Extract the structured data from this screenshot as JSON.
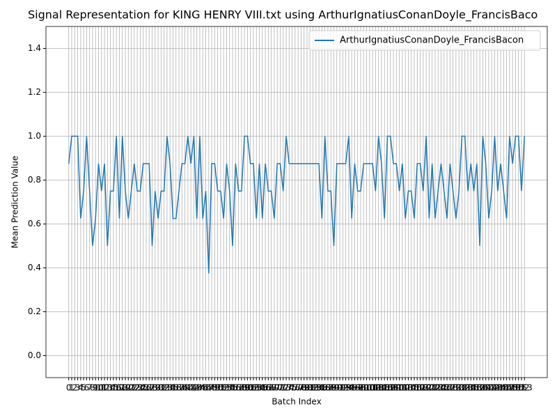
{
  "chart_data": {
    "type": "line",
    "title": "Signal Representation for KING HENRY VIII.txt using ArthurIgnatiusConanDoyle_FrancisBaco",
    "x_label": "Batch Index",
    "y_label": "Mean Prediction Value",
    "x": [
      0,
      1,
      2,
      3,
      4,
      5,
      6,
      7,
      8,
      9,
      10,
      11,
      12,
      13,
      14,
      15,
      16,
      17,
      18,
      19,
      20,
      21,
      22,
      23,
      24,
      25,
      26,
      27,
      28,
      29,
      30,
      31,
      32,
      33,
      34,
      35,
      36,
      37,
      38,
      39,
      40,
      41,
      42,
      43,
      44,
      45,
      46,
      47,
      48,
      49,
      50,
      51,
      52,
      53,
      54,
      55,
      56,
      57,
      58,
      59,
      60,
      61,
      62,
      63,
      64,
      65,
      66,
      67,
      68,
      69,
      70,
      71,
      72,
      73,
      74,
      75,
      76,
      77,
      78,
      79,
      80,
      81,
      82,
      83,
      84,
      85,
      86,
      87,
      88,
      89,
      90,
      91,
      92,
      93,
      94,
      95,
      96,
      97,
      98,
      99,
      100,
      101,
      102,
      103,
      104,
      105,
      106,
      107,
      108,
      109,
      110,
      111,
      112,
      113,
      114,
      115,
      116,
      117,
      118,
      119,
      120,
      121,
      122,
      123,
      124,
      125,
      126,
      127,
      128,
      129,
      130,
      131,
      132,
      133,
      134,
      135,
      136,
      137,
      138,
      139,
      140,
      141,
      142,
      143,
      144,
      145,
      146,
      147,
      148,
      149,
      150,
      151,
      152,
      153
    ],
    "series": [
      {
        "name": "ArthurIgnatiusConanDoyle_FrancisBacon",
        "color": "#1f77b4",
        "values": [
          0.875,
          1,
          1,
          1,
          0.625,
          0.75,
          1,
          0.75,
          0.5,
          0.625,
          0.875,
          0.75,
          0.875,
          0.5,
          0.75,
          0.75,
          1,
          0.625,
          1,
          0.75,
          0.625,
          0.75,
          0.875,
          0.75,
          0.75,
          0.875,
          0.875,
          0.875,
          0.5,
          0.75,
          0.625,
          0.75,
          0.75,
          1,
          0.875,
          0.625,
          0.625,
          0.75,
          0.875,
          0.875,
          1,
          0.875,
          1,
          0.625,
          1,
          0.625,
          0.75,
          0.375,
          0.875,
          0.875,
          0.75,
          0.75,
          0.625,
          0.875,
          0.75,
          0.5,
          0.875,
          0.75,
          0.75,
          1,
          1,
          0.875,
          0.875,
          0.625,
          0.875,
          0.625,
          0.875,
          0.75,
          0.75,
          0.625,
          0.875,
          0.875,
          0.75,
          1,
          0.875,
          0.875,
          0.875,
          0.875,
          0.875,
          0.875,
          0.875,
          0.875,
          0.875,
          0.875,
          0.875,
          0.625,
          1,
          0.75,
          0.75,
          0.5,
          0.875,
          0.875,
          0.875,
          0.875,
          1,
          0.625,
          0.875,
          0.75,
          0.75,
          0.875,
          0.875,
          0.875,
          0.875,
          0.75,
          1,
          0.875,
          0.625,
          1,
          1,
          0.875,
          0.875,
          0.75,
          0.875,
          0.625,
          0.75,
          0.75,
          0.625,
          0.875,
          0.875,
          0.75,
          1,
          0.625,
          0.875,
          0.625,
          0.75,
          0.875,
          0.75,
          0.625,
          0.875,
          0.75,
          0.625,
          0.75,
          1,
          1,
          0.75,
          0.875,
          0.75,
          0.875,
          0.5,
          1,
          0.875,
          0.625,
          0.75,
          1,
          0.75,
          0.875,
          0.75,
          0.625,
          1,
          0.875,
          1,
          1,
          0.75,
          1
        ]
      }
    ],
    "xlim": [
      -7.65,
      160.65
    ],
    "xticks": [
      0,
      1,
      2,
      3,
      4,
      5,
      6,
      7,
      8,
      9,
      10,
      11,
      12,
      13,
      14,
      15,
      16,
      17,
      18,
      19,
      20,
      21,
      22,
      23,
      24,
      25,
      26,
      27,
      28,
      29,
      30,
      31,
      32,
      33,
      34,
      35,
      36,
      37,
      38,
      39,
      40,
      41,
      42,
      43,
      44,
      45,
      46,
      47,
      48,
      49,
      50,
      51,
      52,
      53,
      54,
      55,
      56,
      57,
      58,
      59,
      60,
      61,
      62,
      63,
      64,
      65,
      66,
      67,
      68,
      69,
      70,
      71,
      72,
      73,
      74,
      75,
      76,
      77,
      78,
      79,
      80,
      81,
      82,
      83,
      84,
      85,
      86,
      87,
      88,
      89,
      90,
      91,
      92,
      93,
      94,
      95,
      96,
      97,
      98,
      99,
      100,
      101,
      102,
      103,
      104,
      105,
      106,
      107,
      108,
      109,
      110,
      111,
      112,
      113,
      114,
      115,
      116,
      117,
      118,
      119,
      120,
      121,
      122,
      123,
      124,
      125,
      126,
      127,
      128,
      129,
      130,
      131,
      132,
      133,
      134,
      135,
      136,
      137,
      138,
      139,
      140,
      141,
      142,
      143,
      144,
      145,
      146,
      147,
      148,
      149,
      150,
      151,
      152,
      153
    ],
    "ylim": [
      -0.1,
      1.5
    ],
    "yticks": [
      {
        "value": 0,
        "label": "0.0"
      },
      0.2,
      0.4,
      0.6,
      0.8,
      {
        "value": 1,
        "label": "1.0"
      },
      1.2,
      1.4
    ],
    "grid": true,
    "legend": "upper right"
  }
}
